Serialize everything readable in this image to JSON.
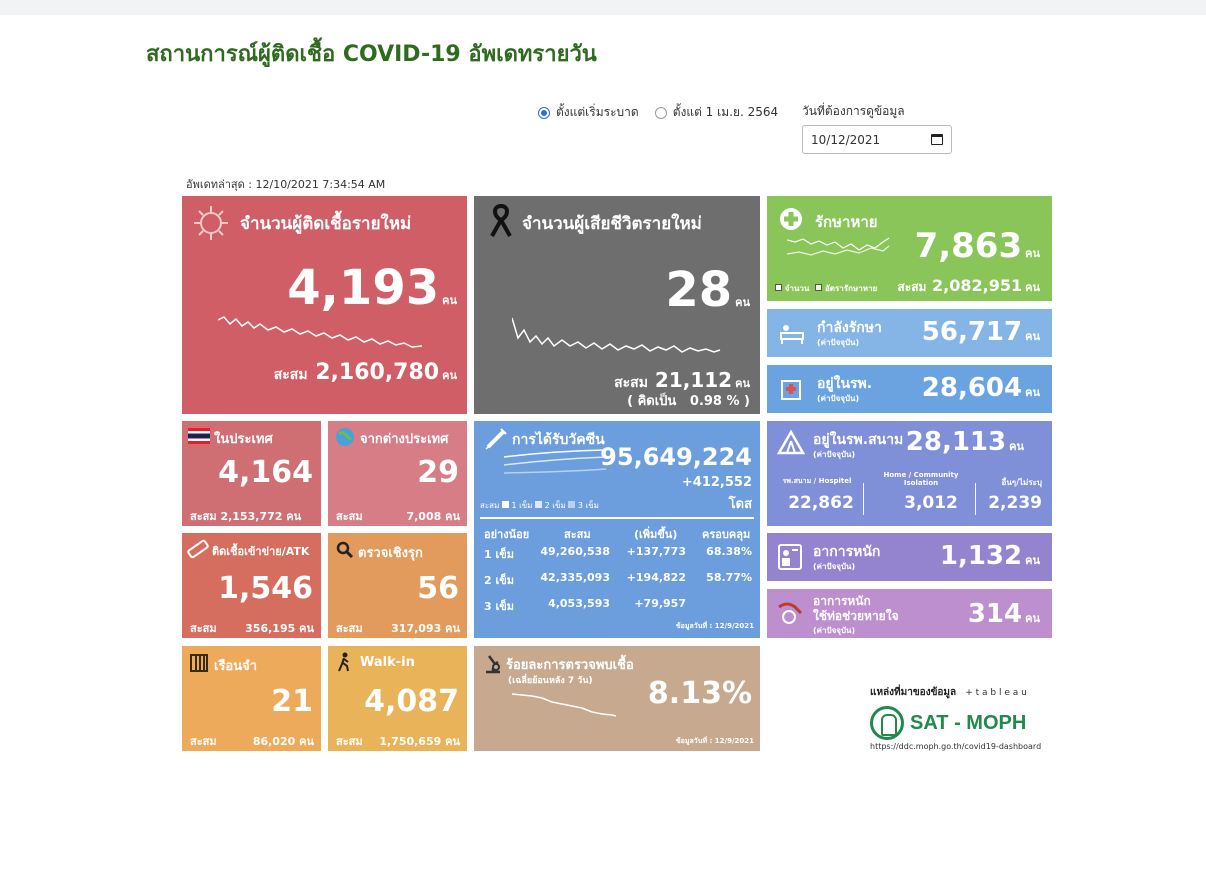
{
  "page": {
    "title": "สถานการณ์ผู้ติดเชื้อ COVID-19 อัพเดทรายวัน",
    "filter_options": [
      "ตั้งแต่เริ่มระบาด",
      "ตั้งแต่ 1 เม.ย. 2564"
    ],
    "filter_selected": "ตั้งแต่เริ่มระบาด",
    "date_label": "วันที่ต้องการดูข้อมูล",
    "date_value": "10/12/2021",
    "updated": "อัพเดทล่าสุด : 12/10/2021 7:34:54 AM"
  },
  "colors": {
    "title": "#2f6b1f",
    "new_cases": "#d05e66",
    "deaths": "#6e6e6e",
    "recovered": "#8ac55a",
    "treating": "#85b4e6",
    "hospital": "#6aa3e0",
    "vaccine": "#6c9ddd",
    "field_hospital": "#7f8fd8",
    "severe": "#9484d0",
    "ventilator": "#be8fce",
    "positive_rate": "#c6a98f"
  },
  "unit": "คน",
  "accum_label": "สะสม",
  "new_cases": {
    "label": "จำนวนผู้ติดเชื้อรายใหม่",
    "value": "4,193",
    "accum": "2,160,780",
    "icon": "virus-icon"
  },
  "deaths": {
    "label": "จำนวนผู้เสียชีวิตรายใหม่",
    "value": "28",
    "accum": "21,112",
    "rate_label": "( คิดเป็น",
    "rate_value": "0.98 % )",
    "icon": "black-ribbon-icon"
  },
  "recovered": {
    "label": "รักษาหาย",
    "value": "7,863",
    "accum": "2,082,951",
    "legend_count": "จำนวน",
    "legend_rate": "อัตรารักษาหาย",
    "icon": "plus-cross-icon"
  },
  "treating": {
    "label": "กำลังรักษา",
    "sublabel": "(ค่าปัจจุบัน)",
    "value": "56,717",
    "icon": "hospital-bed-icon"
  },
  "hospital": {
    "label": "อยู่ในรพ.",
    "sublabel": "(ค่าปัจจุบัน)",
    "value": "28,604",
    "icon": "hospital-building-icon"
  },
  "domestic": {
    "label": "ในประเทศ",
    "value": "4,164",
    "accum": "2,153,772",
    "icon": "thai-flag-icon"
  },
  "abroad": {
    "label": "จากต่างประเทศ",
    "value": "29",
    "accum": "7,008",
    "icon": "globe-virus-icon"
  },
  "vaccine": {
    "label": "การได้รับวัคซีน",
    "total": "95,649,224",
    "increase": "+412,552",
    "unit": "โดส",
    "legend_prefix": "สะสม",
    "legend": [
      "1 เข็ม",
      "2 เข็ม",
      "3 เข็ม"
    ],
    "headers": [
      "อย่างน้อย",
      "สะสม",
      "(เพิ่มขึ้น)",
      "ครอบคลุม"
    ],
    "rows": [
      {
        "dose": "1 เข็ม",
        "accum": "49,260,538",
        "increase": "+137,773",
        "coverage": "68.38%"
      },
      {
        "dose": "2 เข็ม",
        "accum": "42,335,093",
        "increase": "+194,822",
        "coverage": "58.77%"
      },
      {
        "dose": "3 เข็ม",
        "accum": "4,053,593",
        "increase": "+79,957",
        "coverage": ""
      }
    ],
    "as_of": "ข้อมูลวันที่ : 12/9/2021",
    "icon": "syringe-icon"
  },
  "field_hospital": {
    "label": "อยู่ในรพ.สนาม",
    "sublabel": "(ค่าปัจจุบัน)",
    "value": "28,113",
    "cols": [
      {
        "label": "รพ.สนาม / Hospitel",
        "value": "22,862"
      },
      {
        "label": "Home / Community Isolation",
        "value": "3,012"
      },
      {
        "label": "อื่นๆ/ไม่ระบุ",
        "value": "2,239"
      }
    ],
    "icon": "tent-icon"
  },
  "atk": {
    "label": "ติดเชื้อเข้าข่าย/ATK",
    "value": "1,546",
    "accum": "356,195",
    "icon": "atk-test-icon"
  },
  "active_search": {
    "label": "ตรวจเชิงรุก",
    "value": "56",
    "accum": "317,093",
    "icon": "magnifier-icon"
  },
  "severe": {
    "label": "อาการหนัก",
    "sublabel": "(ค่าปัจจุบัน)",
    "value": "1,132",
    "icon": "patient-icon"
  },
  "ventilator": {
    "label": "อาการหนัก",
    "label2": "ใช้ท่อช่วยหายใจ",
    "sublabel": "(ค่าปัจจุบัน)",
    "value": "314",
    "icon": "ventilator-icon"
  },
  "prison": {
    "label": "เรือนจำ",
    "value": "21",
    "accum": "86,020",
    "icon": "prison-bars-icon"
  },
  "walkin": {
    "label": "Walk-in",
    "value": "4,087",
    "accum": "1,750,659",
    "icon": "walking-person-icon"
  },
  "positive_rate": {
    "label": "ร้อยละการตรวจพบเชื้อ",
    "sublabel": "(เฉลี่ยย้อนหลัง 7 วัน)",
    "value": "8.13%",
    "as_of": "ข้อมูลวันที่ : 12/9/2021",
    "icon": "microscope-icon"
  },
  "source": {
    "label": "แหล่งที่มาของข้อมูล",
    "tableau": "+ t a b l e a u",
    "brand": "SAT - MOPH",
    "url": "https://ddc.moph.go.th/covid19-dashboard"
  }
}
